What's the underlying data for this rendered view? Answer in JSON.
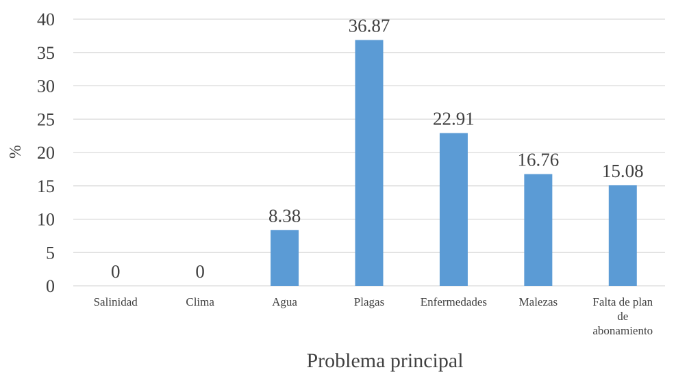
{
  "chart_data": {
    "type": "bar",
    "categories": [
      "Salinidad",
      "Clima",
      "Agua",
      "Plagas",
      "Enfermedades",
      "Malezas",
      "Falta de plan de abonamiento"
    ],
    "category_lines": [
      [
        "Salinidad"
      ],
      [
        "Clima"
      ],
      [
        "Agua"
      ],
      [
        "Plagas"
      ],
      [
        "Enfermedades"
      ],
      [
        "Malezas"
      ],
      [
        "Falta de plan",
        "de",
        "abonamiento"
      ]
    ],
    "values": [
      0,
      0,
      8.38,
      36.87,
      22.91,
      16.76,
      15.08
    ],
    "data_labels": [
      "0",
      "0",
      "8.38",
      "36.87",
      "22.91",
      "16.76",
      "15.08"
    ],
    "xlabel": "Problema principal",
    "ylabel": "%",
    "ylim": [
      0,
      40
    ],
    "yticks": [
      0,
      5,
      10,
      15,
      20,
      25,
      30,
      35,
      40
    ],
    "grid": true,
    "legend": "none",
    "bar_color": "#5b9bd5",
    "grid_color": "#d9d9d9",
    "text_color": "#404040"
  }
}
